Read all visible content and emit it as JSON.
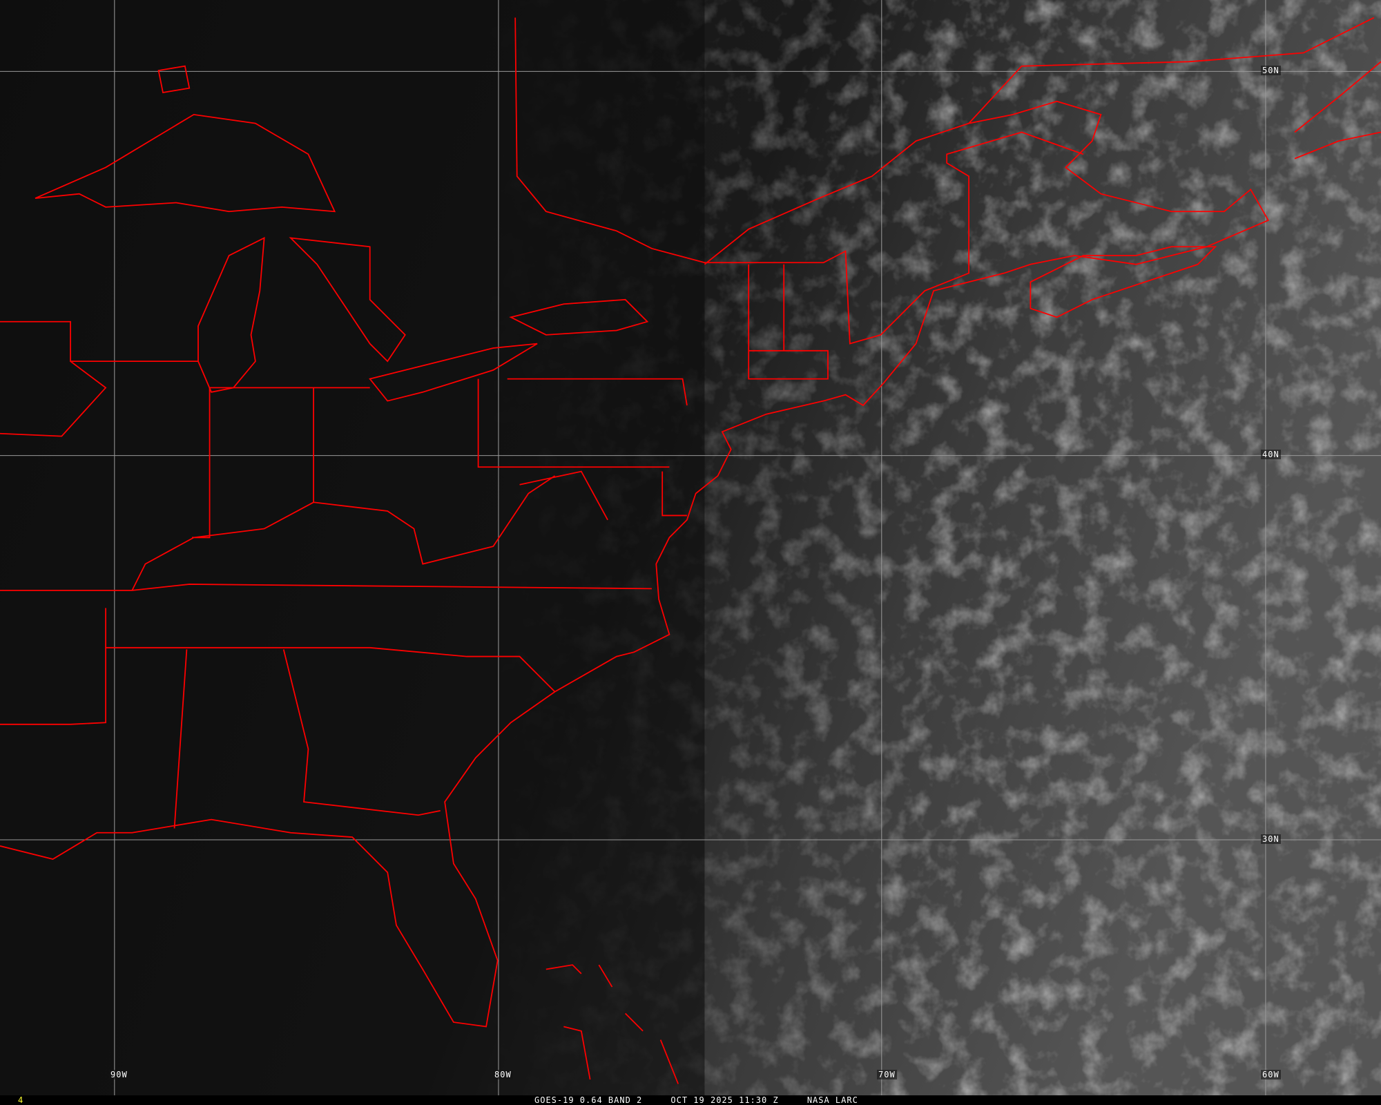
{
  "map": {
    "projection_grid": {
      "longitudes": [
        "90W",
        "80W",
        "70W",
        "60W"
      ],
      "latitudes": [
        "50N",
        "40N",
        "30N"
      ]
    },
    "colors": {
      "boundaries": "#ff0000",
      "grid": "#9a9a9a",
      "background": "#0d0d0d",
      "frame_number": "#ffff33"
    }
  },
  "caption": {
    "satellite": "GOES-19 0.64 BAND 2",
    "datetime": "OCT 19 2025 11:30 Z",
    "source": "NASA LARC",
    "frame_number": "4"
  }
}
